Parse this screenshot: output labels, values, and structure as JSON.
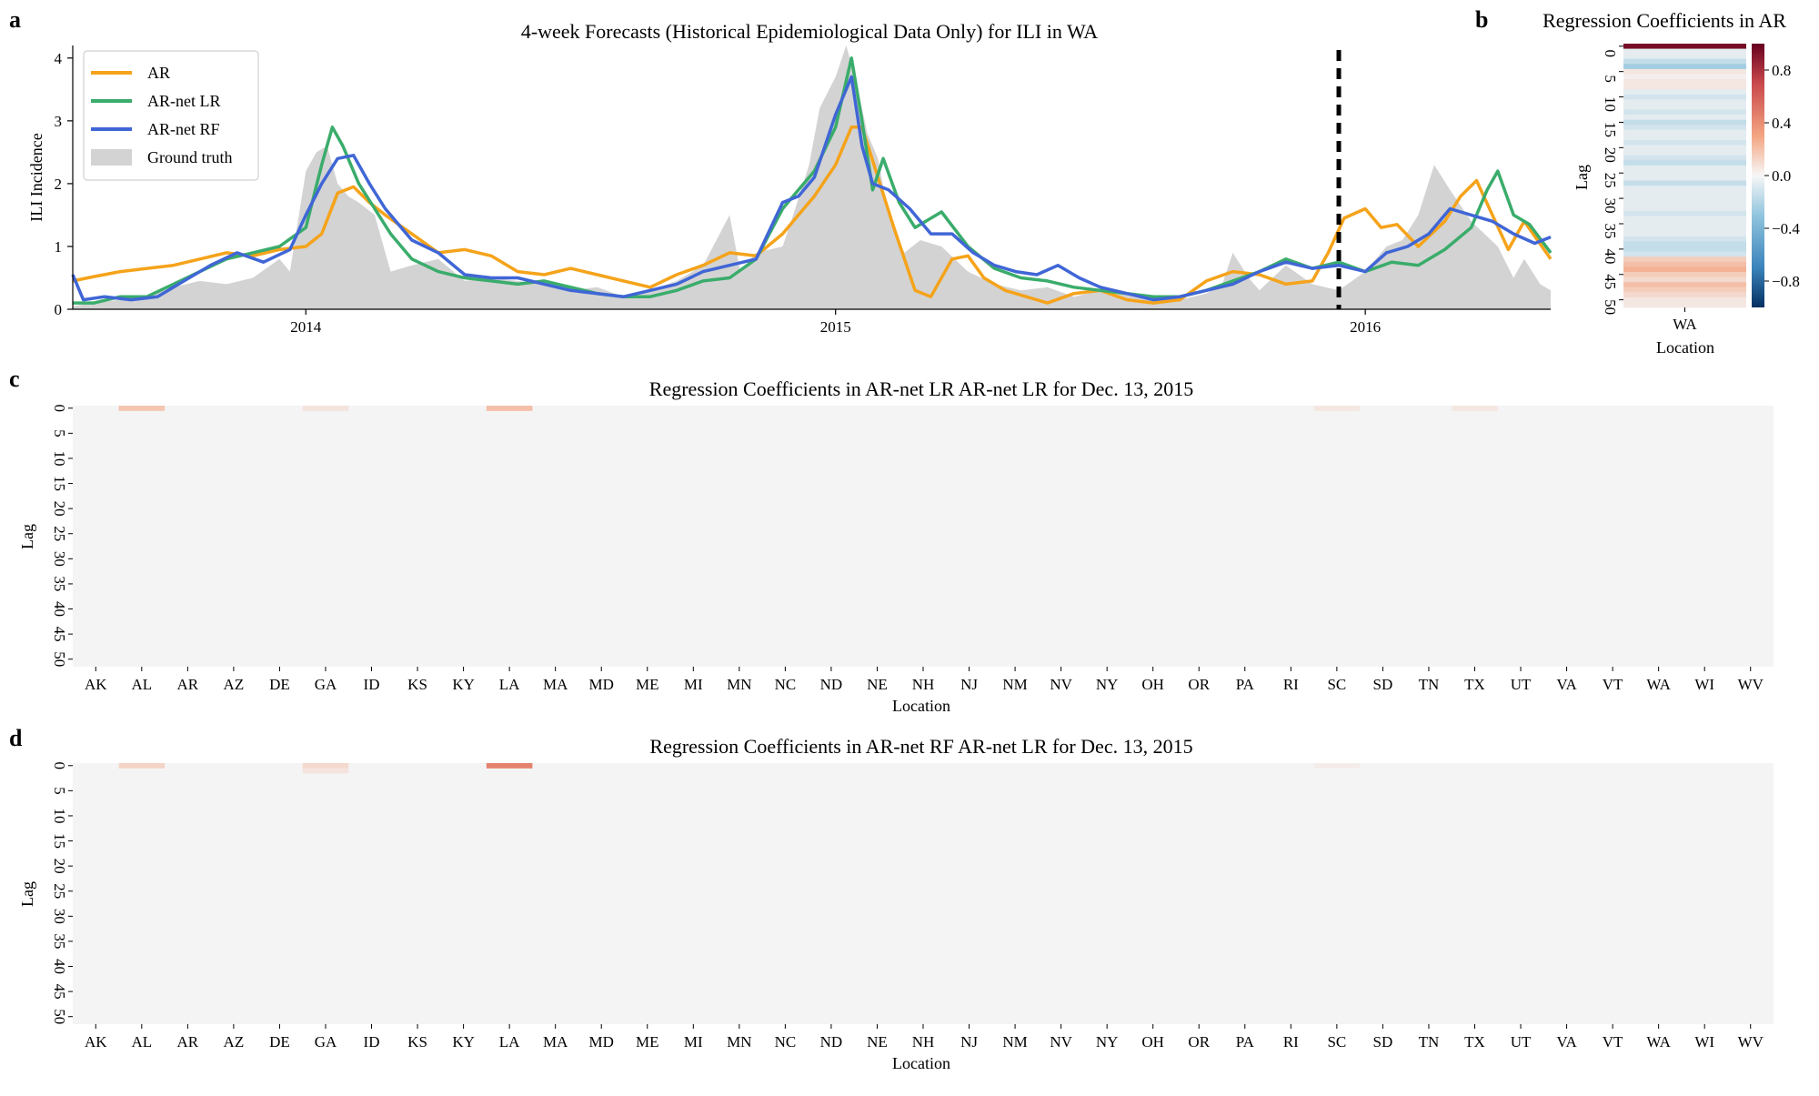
{
  "panel_letters": {
    "a": "a",
    "b": "b",
    "c": "c",
    "d": "d"
  },
  "colors": {
    "AR": "#f5a31a",
    "AR-net LR": "#3aac6b",
    "AR-net RF": "#4066d6",
    "Ground truth": "#d3d3d3",
    "heat_background": "#f4f4f4",
    "marker_line": "#000000"
  },
  "chart_data": [
    {
      "type": "line",
      "title": "4-week Forecasts (Historical Epidemiological Data Only) for ILI in WA",
      "ylabel": "ILI Incidence",
      "xlabel": "",
      "ylim": [
        0,
        4.2
      ],
      "xlim": [
        2013.56,
        2016.35
      ],
      "yticks": [
        0,
        1,
        2,
        3,
        4
      ],
      "xticks": [
        {
          "value": 2014,
          "label": "2014"
        },
        {
          "value": 2015,
          "label": "2015"
        },
        {
          "value": 2016,
          "label": "2016"
        }
      ],
      "forecast_date_marker": 2015.95,
      "legend": {
        "placement": "top-left"
      },
      "series": [
        {
          "name": "AR",
          "kind": "line",
          "x": [
            2013.56,
            2013.6,
            2013.65,
            2013.7,
            2013.75,
            2013.8,
            2013.85,
            2013.9,
            2013.95,
            2014.0,
            2014.03,
            2014.06,
            2014.09,
            2014.12,
            2014.15,
            2014.2,
            2014.25,
            2014.3,
            2014.35,
            2014.4,
            2014.45,
            2014.5,
            2014.55,
            2014.6,
            2014.65,
            2014.7,
            2014.75,
            2014.8,
            2014.85,
            2014.9,
            2014.93,
            2014.96,
            2015.0,
            2015.03,
            2015.05,
            2015.08,
            2015.11,
            2015.15,
            2015.18,
            2015.22,
            2015.25,
            2015.28,
            2015.32,
            2015.36,
            2015.4,
            2015.45,
            2015.5,
            2015.55,
            2015.6,
            2015.65,
            2015.7,
            2015.75,
            2015.8,
            2015.85,
            2015.9,
            2015.93,
            2015.96,
            2016.0,
            2016.03,
            2016.06,
            2016.1,
            2016.15,
            2016.18,
            2016.21,
            2016.24,
            2016.27,
            2016.3,
            2016.35
          ],
          "y": [
            0.45,
            0.52,
            0.6,
            0.65,
            0.7,
            0.8,
            0.9,
            0.85,
            0.95,
            1.0,
            1.2,
            1.85,
            1.95,
            1.7,
            1.5,
            1.2,
            0.9,
            0.95,
            0.85,
            0.6,
            0.55,
            0.65,
            0.55,
            0.45,
            0.35,
            0.55,
            0.7,
            0.9,
            0.85,
            1.2,
            1.5,
            1.8,
            2.3,
            2.9,
            2.9,
            2.1,
            1.3,
            0.3,
            0.2,
            0.8,
            0.85,
            0.5,
            0.3,
            0.2,
            0.1,
            0.25,
            0.3,
            0.15,
            0.1,
            0.15,
            0.45,
            0.6,
            0.55,
            0.4,
            0.45,
            0.9,
            1.45,
            1.6,
            1.3,
            1.35,
            1.0,
            1.4,
            1.8,
            2.05,
            1.5,
            0.95,
            1.4,
            0.8
          ]
        },
        {
          "name": "AR-net LR",
          "kind": "line",
          "x": [
            2013.56,
            2013.6,
            2013.65,
            2013.7,
            2013.75,
            2013.8,
            2013.85,
            2013.9,
            2013.95,
            2014.0,
            2014.03,
            2014.05,
            2014.07,
            2014.1,
            2014.13,
            2014.16,
            2014.2,
            2014.25,
            2014.3,
            2014.35,
            2014.4,
            2014.45,
            2014.5,
            2014.55,
            2014.6,
            2014.65,
            2014.7,
            2014.75,
            2014.8,
            2014.85,
            2014.9,
            2014.93,
            2014.96,
            2015.0,
            2015.03,
            2015.05,
            2015.07,
            2015.09,
            2015.12,
            2015.15,
            2015.2,
            2015.25,
            2015.3,
            2015.35,
            2015.4,
            2015.45,
            2015.5,
            2015.55,
            2015.6,
            2015.65,
            2015.7,
            2015.75,
            2015.8,
            2015.85,
            2015.9,
            2015.95,
            2016.0,
            2016.05,
            2016.1,
            2016.15,
            2016.2,
            2016.23,
            2016.25,
            2016.28,
            2016.31,
            2016.35
          ],
          "y": [
            0.1,
            0.1,
            0.2,
            0.2,
            0.4,
            0.6,
            0.8,
            0.9,
            1.0,
            1.3,
            2.3,
            2.9,
            2.6,
            2.0,
            1.6,
            1.2,
            0.8,
            0.6,
            0.5,
            0.45,
            0.4,
            0.45,
            0.35,
            0.25,
            0.2,
            0.2,
            0.3,
            0.45,
            0.5,
            0.8,
            1.6,
            1.9,
            2.2,
            2.9,
            4.0,
            3.0,
            1.9,
            2.4,
            1.7,
            1.3,
            1.55,
            1.0,
            0.65,
            0.5,
            0.45,
            0.35,
            0.3,
            0.25,
            0.2,
            0.2,
            0.3,
            0.45,
            0.6,
            0.8,
            0.65,
            0.75,
            0.6,
            0.75,
            0.7,
            0.95,
            1.3,
            1.9,
            2.2,
            1.5,
            1.35,
            0.9
          ]
        },
        {
          "name": "AR-net RF",
          "kind": "line",
          "x": [
            2013.56,
            2013.58,
            2013.62,
            2013.67,
            2013.72,
            2013.77,
            2013.82,
            2013.87,
            2013.92,
            2013.97,
            2014.0,
            2014.03,
            2014.06,
            2014.09,
            2014.12,
            2014.15,
            2014.2,
            2014.25,
            2014.3,
            2014.35,
            2014.4,
            2014.45,
            2014.5,
            2014.55,
            2014.6,
            2014.65,
            2014.7,
            2014.75,
            2014.8,
            2014.85,
            2014.9,
            2014.93,
            2014.96,
            2015.0,
            2015.03,
            2015.05,
            2015.07,
            2015.1,
            2015.14,
            2015.18,
            2015.22,
            2015.26,
            2015.3,
            2015.34,
            2015.38,
            2015.42,
            2015.46,
            2015.5,
            2015.55,
            2015.6,
            2015.65,
            2015.7,
            2015.75,
            2015.8,
            2015.85,
            2015.9,
            2015.95,
            2016.0,
            2016.04,
            2016.08,
            2016.12,
            2016.16,
            2016.2,
            2016.24,
            2016.28,
            2016.32,
            2016.35
          ],
          "y": [
            0.55,
            0.15,
            0.2,
            0.15,
            0.2,
            0.45,
            0.7,
            0.9,
            0.75,
            0.95,
            1.5,
            2.0,
            2.4,
            2.45,
            2.0,
            1.6,
            1.1,
            0.9,
            0.55,
            0.5,
            0.5,
            0.4,
            0.3,
            0.25,
            0.2,
            0.3,
            0.4,
            0.6,
            0.7,
            0.8,
            1.7,
            1.8,
            2.1,
            3.1,
            3.7,
            2.6,
            2.0,
            1.9,
            1.6,
            1.2,
            1.2,
            0.9,
            0.7,
            0.6,
            0.55,
            0.7,
            0.5,
            0.35,
            0.25,
            0.15,
            0.2,
            0.3,
            0.4,
            0.6,
            0.75,
            0.65,
            0.7,
            0.6,
            0.9,
            1.0,
            1.2,
            1.6,
            1.5,
            1.4,
            1.2,
            1.05,
            1.15
          ]
        },
        {
          "name": "Ground truth",
          "kind": "area",
          "x": [
            2013.56,
            2013.6,
            2013.65,
            2013.7,
            2013.75,
            2013.8,
            2013.85,
            2013.9,
            2013.95,
            2013.97,
            2014.0,
            2014.02,
            2014.04,
            2014.06,
            2014.08,
            2014.1,
            2014.13,
            2014.16,
            2014.2,
            2014.25,
            2014.3,
            2014.35,
            2014.4,
            2014.45,
            2014.5,
            2014.55,
            2014.6,
            2014.65,
            2014.7,
            2014.75,
            2014.8,
            2014.82,
            2014.85,
            2014.9,
            2014.92,
            2014.95,
            2014.97,
            2015.0,
            2015.02,
            2015.04,
            2015.06,
            2015.08,
            2015.1,
            2015.13,
            2015.16,
            2015.2,
            2015.25,
            2015.3,
            2015.35,
            2015.4,
            2015.45,
            2015.5,
            2015.55,
            2015.6,
            2015.65,
            2015.7,
            2015.73,
            2015.75,
            2015.78,
            2015.8,
            2015.85,
            2015.9,
            2015.95,
            2016.0,
            2016.04,
            2016.07,
            2016.1,
            2016.13,
            2016.16,
            2016.2,
            2016.25,
            2016.28,
            2016.3,
            2016.33,
            2016.35
          ],
          "y": [
            0.05,
            0.1,
            0.15,
            0.2,
            0.35,
            0.45,
            0.4,
            0.5,
            0.8,
            0.6,
            2.2,
            2.5,
            2.6,
            2.0,
            1.8,
            1.7,
            1.5,
            0.6,
            0.7,
            0.8,
            0.45,
            0.5,
            0.45,
            0.4,
            0.3,
            0.35,
            0.2,
            0.3,
            0.45,
            0.7,
            1.5,
            0.6,
            0.9,
            1.0,
            1.5,
            2.3,
            3.2,
            3.7,
            4.2,
            3.6,
            2.8,
            2.4,
            1.5,
            0.9,
            1.1,
            1.0,
            0.6,
            0.4,
            0.3,
            0.35,
            0.2,
            0.3,
            0.25,
            0.2,
            0.15,
            0.25,
            0.4,
            0.9,
            0.5,
            0.3,
            0.7,
            0.4,
            0.3,
            0.6,
            1.0,
            1.1,
            1.5,
            2.3,
            1.9,
            1.4,
            1.0,
            0.5,
            0.8,
            0.4,
            0.3
          ]
        }
      ]
    },
    {
      "type": "heatmap",
      "title": "Regression Coefficients in AR",
      "xlabel": "Location",
      "ylabel": "Lag",
      "x_categories": [
        "WA"
      ],
      "y_ticks": [
        "0",
        "5",
        "10",
        "15",
        "20",
        "25",
        "30",
        "35",
        "40",
        "45",
        "50"
      ],
      "colorbar_ticks": [
        "0.8",
        "0.4",
        "0.0",
        "−0.4",
        "−0.8"
      ],
      "colorbar_range": [
        -1.0,
        1.0
      ],
      "values": [
        0.95,
        -0.05,
        -0.05,
        -0.15,
        -0.25,
        0.05,
        0.02,
        0.05,
        0.05,
        -0.05,
        -0.1,
        -0.05,
        -0.05,
        -0.1,
        -0.05,
        -0.15,
        -0.1,
        -0.05,
        -0.05,
        -0.1,
        -0.05,
        -0.05,
        -0.1,
        -0.15,
        -0.05,
        -0.05,
        -0.05,
        -0.15,
        -0.05,
        -0.05,
        -0.05,
        -0.05,
        -0.05,
        -0.1,
        -0.05,
        -0.05,
        -0.05,
        -0.05,
        -0.1,
        -0.15,
        -0.15,
        -0.1,
        0.15,
        0.2,
        0.25,
        0.15,
        0.1,
        0.2,
        0.15,
        0.1,
        0.05,
        0.05
      ]
    },
    {
      "type": "heatmap",
      "title": "Regression Coefficients in AR-net LR AR-net LR for Dec. 13, 2015",
      "xlabel": "Location",
      "ylabel": "Lag",
      "x_categories": [
        "AK",
        "AL",
        "AR",
        "AZ",
        "DE",
        "GA",
        "ID",
        "KS",
        "KY",
        "LA",
        "MA",
        "MD",
        "ME",
        "MI",
        "MN",
        "NC",
        "ND",
        "NE",
        "NH",
        "NJ",
        "NM",
        "NV",
        "NY",
        "OH",
        "OR",
        "PA",
        "RI",
        "SC",
        "SD",
        "TN",
        "TX",
        "UT",
        "VA",
        "VT",
        "WA",
        "WI",
        "WV"
      ],
      "y_ticks": [
        "0",
        "5",
        "10",
        "15",
        "20",
        "25",
        "30",
        "35",
        "40",
        "45",
        "50"
      ],
      "nonzero_cells": [
        {
          "location": "AL",
          "lag": 0,
          "value": 0.18
        },
        {
          "location": "GA",
          "lag": 0,
          "value": 0.06
        },
        {
          "location": "LA",
          "lag": 0,
          "value": 0.2
        },
        {
          "location": "SC",
          "lag": 0,
          "value": 0.05
        },
        {
          "location": "TX",
          "lag": 0,
          "value": 0.05
        }
      ]
    },
    {
      "type": "heatmap",
      "title": "Regression Coefficients in AR-net RF AR-net LR for Dec. 13, 2015",
      "xlabel": "Location",
      "ylabel": "Lag",
      "x_categories": [
        "AK",
        "AL",
        "AR",
        "AZ",
        "DE",
        "GA",
        "ID",
        "KS",
        "KY",
        "LA",
        "MA",
        "MD",
        "ME",
        "MI",
        "MN",
        "NC",
        "ND",
        "NE",
        "NH",
        "NJ",
        "NM",
        "NV",
        "NY",
        "OH",
        "OR",
        "PA",
        "RI",
        "SC",
        "SD",
        "TN",
        "TX",
        "UT",
        "VA",
        "VT",
        "WA",
        "WI",
        "WV"
      ],
      "y_ticks": [
        "0",
        "5",
        "10",
        "15",
        "20",
        "25",
        "30",
        "35",
        "40",
        "45",
        "50"
      ],
      "nonzero_cells": [
        {
          "location": "AL",
          "lag": 0,
          "value": 0.12
        },
        {
          "location": "GA",
          "lag": 0,
          "value": 0.1
        },
        {
          "location": "GA",
          "lag": 1,
          "value": 0.06
        },
        {
          "location": "LA",
          "lag": 0,
          "value": 0.45
        },
        {
          "location": "SC",
          "lag": 0,
          "value": 0.03
        }
      ]
    }
  ]
}
